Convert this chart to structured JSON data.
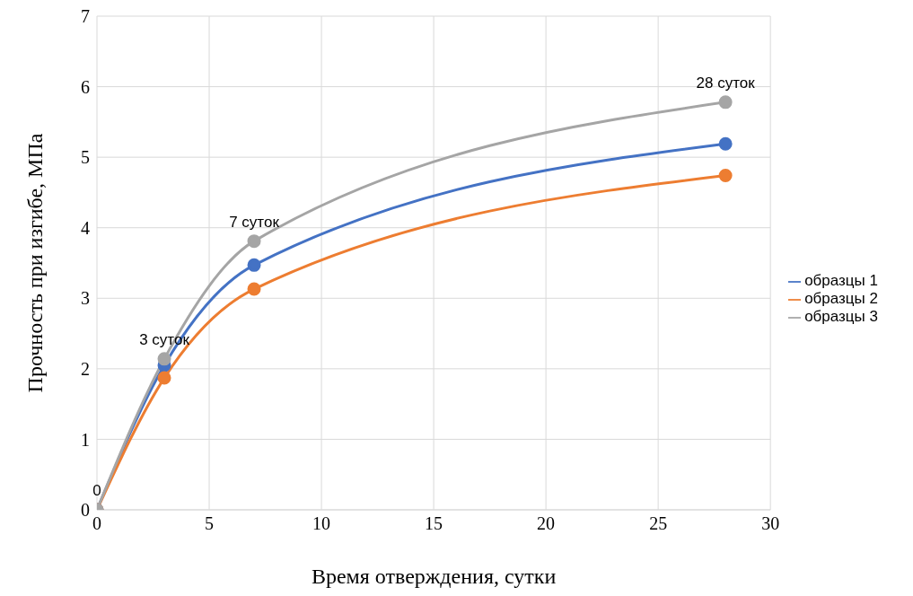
{
  "chart_data": {
    "type": "line",
    "xlabel": "Время отверждения, сутки",
    "ylabel": "Прочность при изгибе, МПа",
    "x": [
      0,
      3,
      7,
      28
    ],
    "series": [
      {
        "name": "образцы 1",
        "color": "#4472c4",
        "values": [
          0,
          2.05,
          3.47,
          5.19
        ]
      },
      {
        "name": "образцы 2",
        "color": "#ed7d31",
        "values": [
          0,
          1.87,
          3.13,
          4.74
        ]
      },
      {
        "name": "образцы 3",
        "color": "#a5a5a5",
        "values": [
          0,
          2.14,
          3.81,
          5.78
        ]
      }
    ],
    "xlim": [
      0,
      30
    ],
    "xticks": [
      0,
      5,
      10,
      15,
      20,
      25,
      30
    ],
    "ylim": [
      0,
      7
    ],
    "yticks": [
      0,
      1,
      2,
      3,
      4,
      5,
      6,
      7
    ],
    "grid": true,
    "legend": "right",
    "marker": "circle",
    "line_style": "solid",
    "annotations": [
      {
        "text": "0",
        "x": 0,
        "y": 0
      },
      {
        "text": "3 суток",
        "x": 3,
        "y": 2.14
      },
      {
        "text": "7 суток",
        "x": 7,
        "y": 3.81
      },
      {
        "text": "28 суток",
        "x": 28,
        "y": 5.78
      }
    ]
  }
}
